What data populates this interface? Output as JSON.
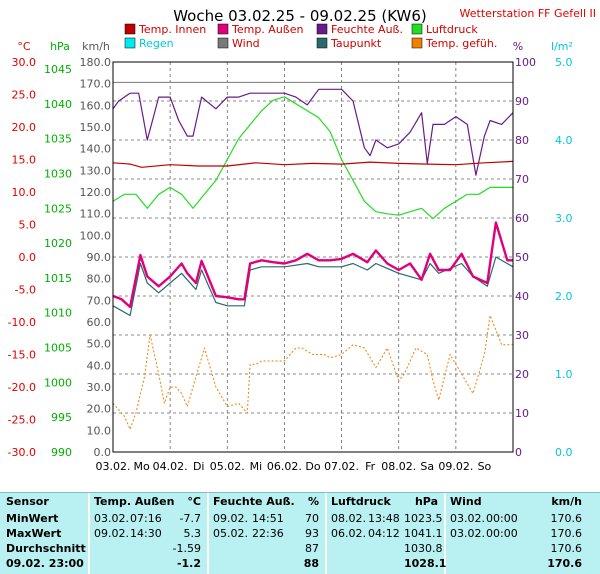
{
  "title": "Woche 03.02.25 - 09.02.25 (KW6)",
  "station": "Wetterstation FF Gefell II",
  "colors": {
    "temp_innen": "#c00000",
    "temp_aussen": "#e0007a",
    "feuchte_aussen": "#6a1a8a",
    "luftdruck": "#22dd22",
    "regen": "#00e8f0",
    "wind": "#7a7a7a",
    "taupunkt": "#2a6a6a",
    "gefuehlt": "#f08000",
    "grid": "#666666",
    "frame": "#000000"
  },
  "legend": [
    {
      "label": "Temp. Innen",
      "color": "#c00000",
      "text_color": "#d00000"
    },
    {
      "label": "Temp. Außen",
      "color": "#e0007a",
      "text_color": "#d00000"
    },
    {
      "label": "Feuchte Auß.",
      "color": "#6a1a8a",
      "text_color": "#d00000"
    },
    {
      "label": "Luftdruck",
      "color": "#22dd22",
      "text_color": "#d00000"
    },
    {
      "label": "Regen",
      "color": "#00e8f0",
      "text_color": "#00c8d8"
    },
    {
      "label": "Wind",
      "color": "#7a7a7a",
      "text_color": "#d00000"
    },
    {
      "label": "Taupunkt",
      "color": "#2a6a6a",
      "text_color": "#d00000"
    },
    {
      "label": "Temp. gefüh.",
      "color": "#f08000",
      "text_color": "#d00000"
    }
  ],
  "axis_units": {
    "temp": "°C",
    "pressure": "hPa",
    "wind": "km/h",
    "humidity": "%",
    "rain": "l/m²"
  },
  "chart_data": {
    "type": "line",
    "title": "Woche 03.02.25 - 09.02.25 (KW6)",
    "x_range_days": [
      0,
      7
    ],
    "x_ticks": [
      {
        "day": 0,
        "label": "03.02."
      },
      {
        "day": 0.5,
        "label": "Mo"
      },
      {
        "day": 1,
        "label": "04.02."
      },
      {
        "day": 1.5,
        "label": "Di"
      },
      {
        "day": 2,
        "label": "05.02."
      },
      {
        "day": 2.5,
        "label": "Mi"
      },
      {
        "day": 3,
        "label": "06.02."
      },
      {
        "day": 3.5,
        "label": "Do"
      },
      {
        "day": 4,
        "label": "07.02."
      },
      {
        "day": 4.5,
        "label": "Fr"
      },
      {
        "day": 5,
        "label": "08.02."
      },
      {
        "day": 5.5,
        "label": "Sa"
      },
      {
        "day": 6,
        "label": "09.02."
      },
      {
        "day": 6.5,
        "label": "So"
      }
    ],
    "axes": {
      "temp": {
        "label": "°C",
        "ylim": [
          -30,
          30
        ],
        "ticks": [
          "30.0",
          "25.0",
          "20.0",
          "15.0",
          "10.0",
          "5.0",
          "0.0",
          "-5.0",
          "-10.0",
          "-15.0",
          "-20.0",
          "-25.0",
          "-30.0"
        ]
      },
      "pressure": {
        "label": "hPa",
        "ylim": [
          990,
          1046
        ],
        "ticks": [
          "1045",
          "1040",
          "1035",
          "1030",
          "1025",
          "1020",
          "1015",
          "1010",
          "1005",
          "1000",
          "995",
          "990"
        ]
      },
      "wind": {
        "label": "km/h",
        "ylim": [
          0,
          180
        ],
        "ticks": [
          "180.0",
          "170.0",
          "160.0",
          "150.0",
          "140.0",
          "130.0",
          "120.0",
          "110.0",
          "100.0",
          "90.0",
          "80.0",
          "70.0",
          "60.0",
          "50.0",
          "40.0",
          "30.0",
          "20.0",
          "10.0",
          "0.0"
        ]
      },
      "humidity": {
        "label": "%",
        "ylim": [
          0,
          100
        ],
        "ticks": [
          "100",
          "90",
          "80",
          "70",
          "60",
          "50",
          "40",
          "30",
          "20",
          "10",
          "0"
        ]
      },
      "rain": {
        "label": "l/m²",
        "ylim": [
          0,
          5
        ],
        "ticks": [
          "5.0",
          "4.0",
          "3.0",
          "2.0",
          "1.0",
          "0.0"
        ]
      }
    },
    "grid": true,
    "series": [
      {
        "name": "Temp. Innen",
        "axis": "temp",
        "x": [
          0,
          0.3,
          0.5,
          1,
          1.5,
          2,
          2.5,
          3,
          3.5,
          4,
          4.5,
          5,
          5.5,
          6,
          6.5,
          7
        ],
        "values": [
          14.5,
          14.3,
          13.8,
          14.2,
          14.0,
          14.0,
          14.5,
          14.2,
          14.4,
          14.3,
          14.6,
          14.4,
          14.3,
          14.2,
          14.5,
          14.7
        ]
      },
      {
        "name": "Temp. Außen",
        "axis": "temp",
        "x": [
          0,
          0.15,
          0.3,
          0.48,
          0.6,
          0.8,
          1.0,
          1.2,
          1.3,
          1.45,
          1.55,
          1.8,
          2.0,
          2.2,
          2.3,
          2.4,
          2.6,
          2.8,
          3.0,
          3.2,
          3.4,
          3.6,
          3.8,
          4.0,
          4.2,
          4.45,
          4.6,
          4.8,
          5.0,
          5.2,
          5.4,
          5.55,
          5.7,
          5.9,
          6.1,
          6.3,
          6.55,
          6.7,
          6.9,
          7.0
        ],
        "values": [
          -6.0,
          -6.5,
          -7.7,
          0.3,
          -3.0,
          -4.5,
          -3.0,
          -1.0,
          -2.5,
          -4.0,
          -0.6,
          -6.0,
          -6.2,
          -6.5,
          -6.5,
          -1.0,
          -0.5,
          -0.8,
          -1.0,
          -0.5,
          0.5,
          -0.5,
          -0.5,
          -0.3,
          0.5,
          -0.8,
          1.0,
          -1.0,
          -2.0,
          -1.0,
          -3.5,
          0.5,
          -2.0,
          -2.0,
          0.5,
          -3.0,
          -4.0,
          5.3,
          -0.5,
          -0.5
        ]
      },
      {
        "name": "Feuchte Auß.",
        "axis": "humidity",
        "x": [
          0,
          0.1,
          0.3,
          0.45,
          0.6,
          0.8,
          1.0,
          1.15,
          1.3,
          1.4,
          1.55,
          1.8,
          2.0,
          2.2,
          2.4,
          2.6,
          2.8,
          3.0,
          3.2,
          3.4,
          3.6,
          3.8,
          4.0,
          4.2,
          4.4,
          4.5,
          4.6,
          4.8,
          5.0,
          5.2,
          5.4,
          5.5,
          5.6,
          5.8,
          6.0,
          6.2,
          6.35,
          6.5,
          6.6,
          6.8,
          7.0
        ],
        "values": [
          88,
          90,
          92,
          92,
          80,
          91,
          91,
          85,
          81,
          81,
          91,
          88,
          91,
          91,
          92,
          92,
          92,
          92,
          91,
          89,
          93,
          93,
          93,
          90,
          78,
          76,
          80,
          78,
          79,
          82,
          87,
          74,
          84,
          84,
          86,
          84,
          71,
          81,
          85,
          84,
          87
        ]
      },
      {
        "name": "Luftdruck",
        "axis": "pressure",
        "x": [
          0,
          0.2,
          0.4,
          0.6,
          0.8,
          1.0,
          1.2,
          1.4,
          1.6,
          1.8,
          2.0,
          2.2,
          2.4,
          2.6,
          2.8,
          3.0,
          3.2,
          3.4,
          3.6,
          3.8,
          4.0,
          4.2,
          4.4,
          4.6,
          4.8,
          5.0,
          5.2,
          5.4,
          5.6,
          5.8,
          6.0,
          6.2,
          6.4,
          6.6,
          6.8,
          7.0
        ],
        "values": [
          1026,
          1027,
          1027,
          1025,
          1027,
          1028,
          1027,
          1025,
          1027,
          1029,
          1032,
          1035,
          1037,
          1039,
          1040.5,
          1041,
          1040,
          1039,
          1038,
          1036,
          1032,
          1029,
          1026,
          1024.5,
          1024.2,
          1024,
          1024.5,
          1025,
          1023.5,
          1025,
          1026,
          1027,
          1027,
          1028,
          1028,
          1028
        ]
      },
      {
        "name": "Taupunkt",
        "axis": "temp",
        "x": [
          0,
          0.3,
          0.48,
          0.6,
          0.8,
          1.0,
          1.2,
          1.3,
          1.45,
          1.55,
          1.8,
          2.0,
          2.3,
          2.4,
          2.6,
          3.0,
          3.4,
          3.6,
          4.0,
          4.2,
          4.45,
          4.6,
          5.0,
          5.4,
          5.55,
          5.7,
          6.1,
          6.3,
          6.55,
          6.7,
          7.0
        ],
        "values": [
          -7.5,
          -9.0,
          -1.0,
          -4.0,
          -5.5,
          -4.0,
          -2.5,
          -3.5,
          -5.0,
          -2.0,
          -7.0,
          -7.5,
          -7.5,
          -2.0,
          -1.5,
          -1.5,
          -1.0,
          -1.5,
          -1.5,
          -1.0,
          -2.0,
          -1.0,
          -2.5,
          -3.5,
          -1.0,
          -2.5,
          -1.0,
          -3.0,
          -4.5,
          0.0,
          -1.5
        ]
      },
      {
        "name": "Temp. gefüh.",
        "axis": "temp",
        "x": [
          0,
          0.2,
          0.3,
          0.4,
          0.55,
          0.65,
          0.8,
          0.9,
          1.0,
          1.1,
          1.2,
          1.3,
          1.45,
          1.6,
          1.8,
          2.0,
          2.2,
          2.35,
          2.4,
          2.5,
          2.6,
          2.8,
          3.0,
          3.2,
          3.3,
          3.5,
          3.7,
          3.8,
          4.0,
          4.2,
          4.4,
          4.6,
          4.8,
          5.0,
          5.1,
          5.3,
          5.5,
          5.6,
          5.7,
          5.9,
          6.1,
          6.3,
          6.5,
          6.6,
          6.8,
          7.0
        ],
        "values": [
          -22.5,
          -24.5,
          -26.5,
          -24.0,
          -18.5,
          -12.0,
          -18.0,
          -22.5,
          -20.0,
          -20.0,
          -21.0,
          -23.0,
          -18.5,
          -14.0,
          -20.0,
          -23.0,
          -22.5,
          -24.0,
          -16.5,
          -16.5,
          -16.0,
          -16.0,
          -16.0,
          -14.0,
          -14.0,
          -15.0,
          -15.0,
          -15.5,
          -15.0,
          -13.5,
          -14.0,
          -17.0,
          -14.0,
          -19.0,
          -18.0,
          -14.0,
          -15.0,
          -19.0,
          -22.0,
          -15.0,
          -18.0,
          -21.0,
          -15.0,
          -9.0,
          -13.5,
          -13.5
        ]
      },
      {
        "name": "Wind",
        "axis": "wind",
        "x": [
          0,
          7
        ],
        "values": [
          170.6,
          170.6
        ]
      }
    ]
  },
  "stats": {
    "headers": {
      "sensor": "Sensor",
      "temp_label": "Temp. Außen",
      "temp_unit": "°C",
      "hum_label": "Feuchte Auß.",
      "hum_unit": "%",
      "press_label": "Luftdruck",
      "press_unit": "hPa",
      "wind_label": "Wind",
      "wind_unit": "km/h"
    },
    "rows": [
      {
        "label": "MinWert",
        "t_date": "03.02.",
        "t_time": "07:16",
        "t_val": "-7.7",
        "h_date": "09.02.",
        "h_time": "14:51",
        "h_val": "70",
        "p_date": "08.02.",
        "p_time": "13:48",
        "p_val": "1023.5",
        "w_date": "03.02.",
        "w_time": "00:00",
        "w_val": "170.6"
      },
      {
        "label": "MaxWert",
        "t_date": "09.02.",
        "t_time": "14:30",
        "t_val": "5.3",
        "h_date": "05.02.",
        "h_time": "22:36",
        "h_val": "93",
        "p_date": "06.02.",
        "p_time": "04:12",
        "p_val": "1041.1",
        "w_date": "03.02.",
        "w_time": "00:00",
        "w_val": "170.6"
      },
      {
        "label": "Durchschnitt",
        "t_date": "",
        "t_time": "",
        "t_val": "-1.59",
        "h_date": "",
        "h_time": "",
        "h_val": "87",
        "p_date": "",
        "p_time": "",
        "p_val": "1030.8",
        "w_date": "",
        "w_time": "",
        "w_val": "170.6"
      },
      {
        "label": "09.02. 23:00",
        "t_date": "",
        "t_time": "",
        "t_val": "-1.2",
        "h_date": "",
        "h_time": "",
        "h_val": "88",
        "p_date": "",
        "p_time": "",
        "p_val": "1028.1",
        "w_date": "",
        "w_time": "",
        "w_val": "170.6"
      }
    ]
  }
}
